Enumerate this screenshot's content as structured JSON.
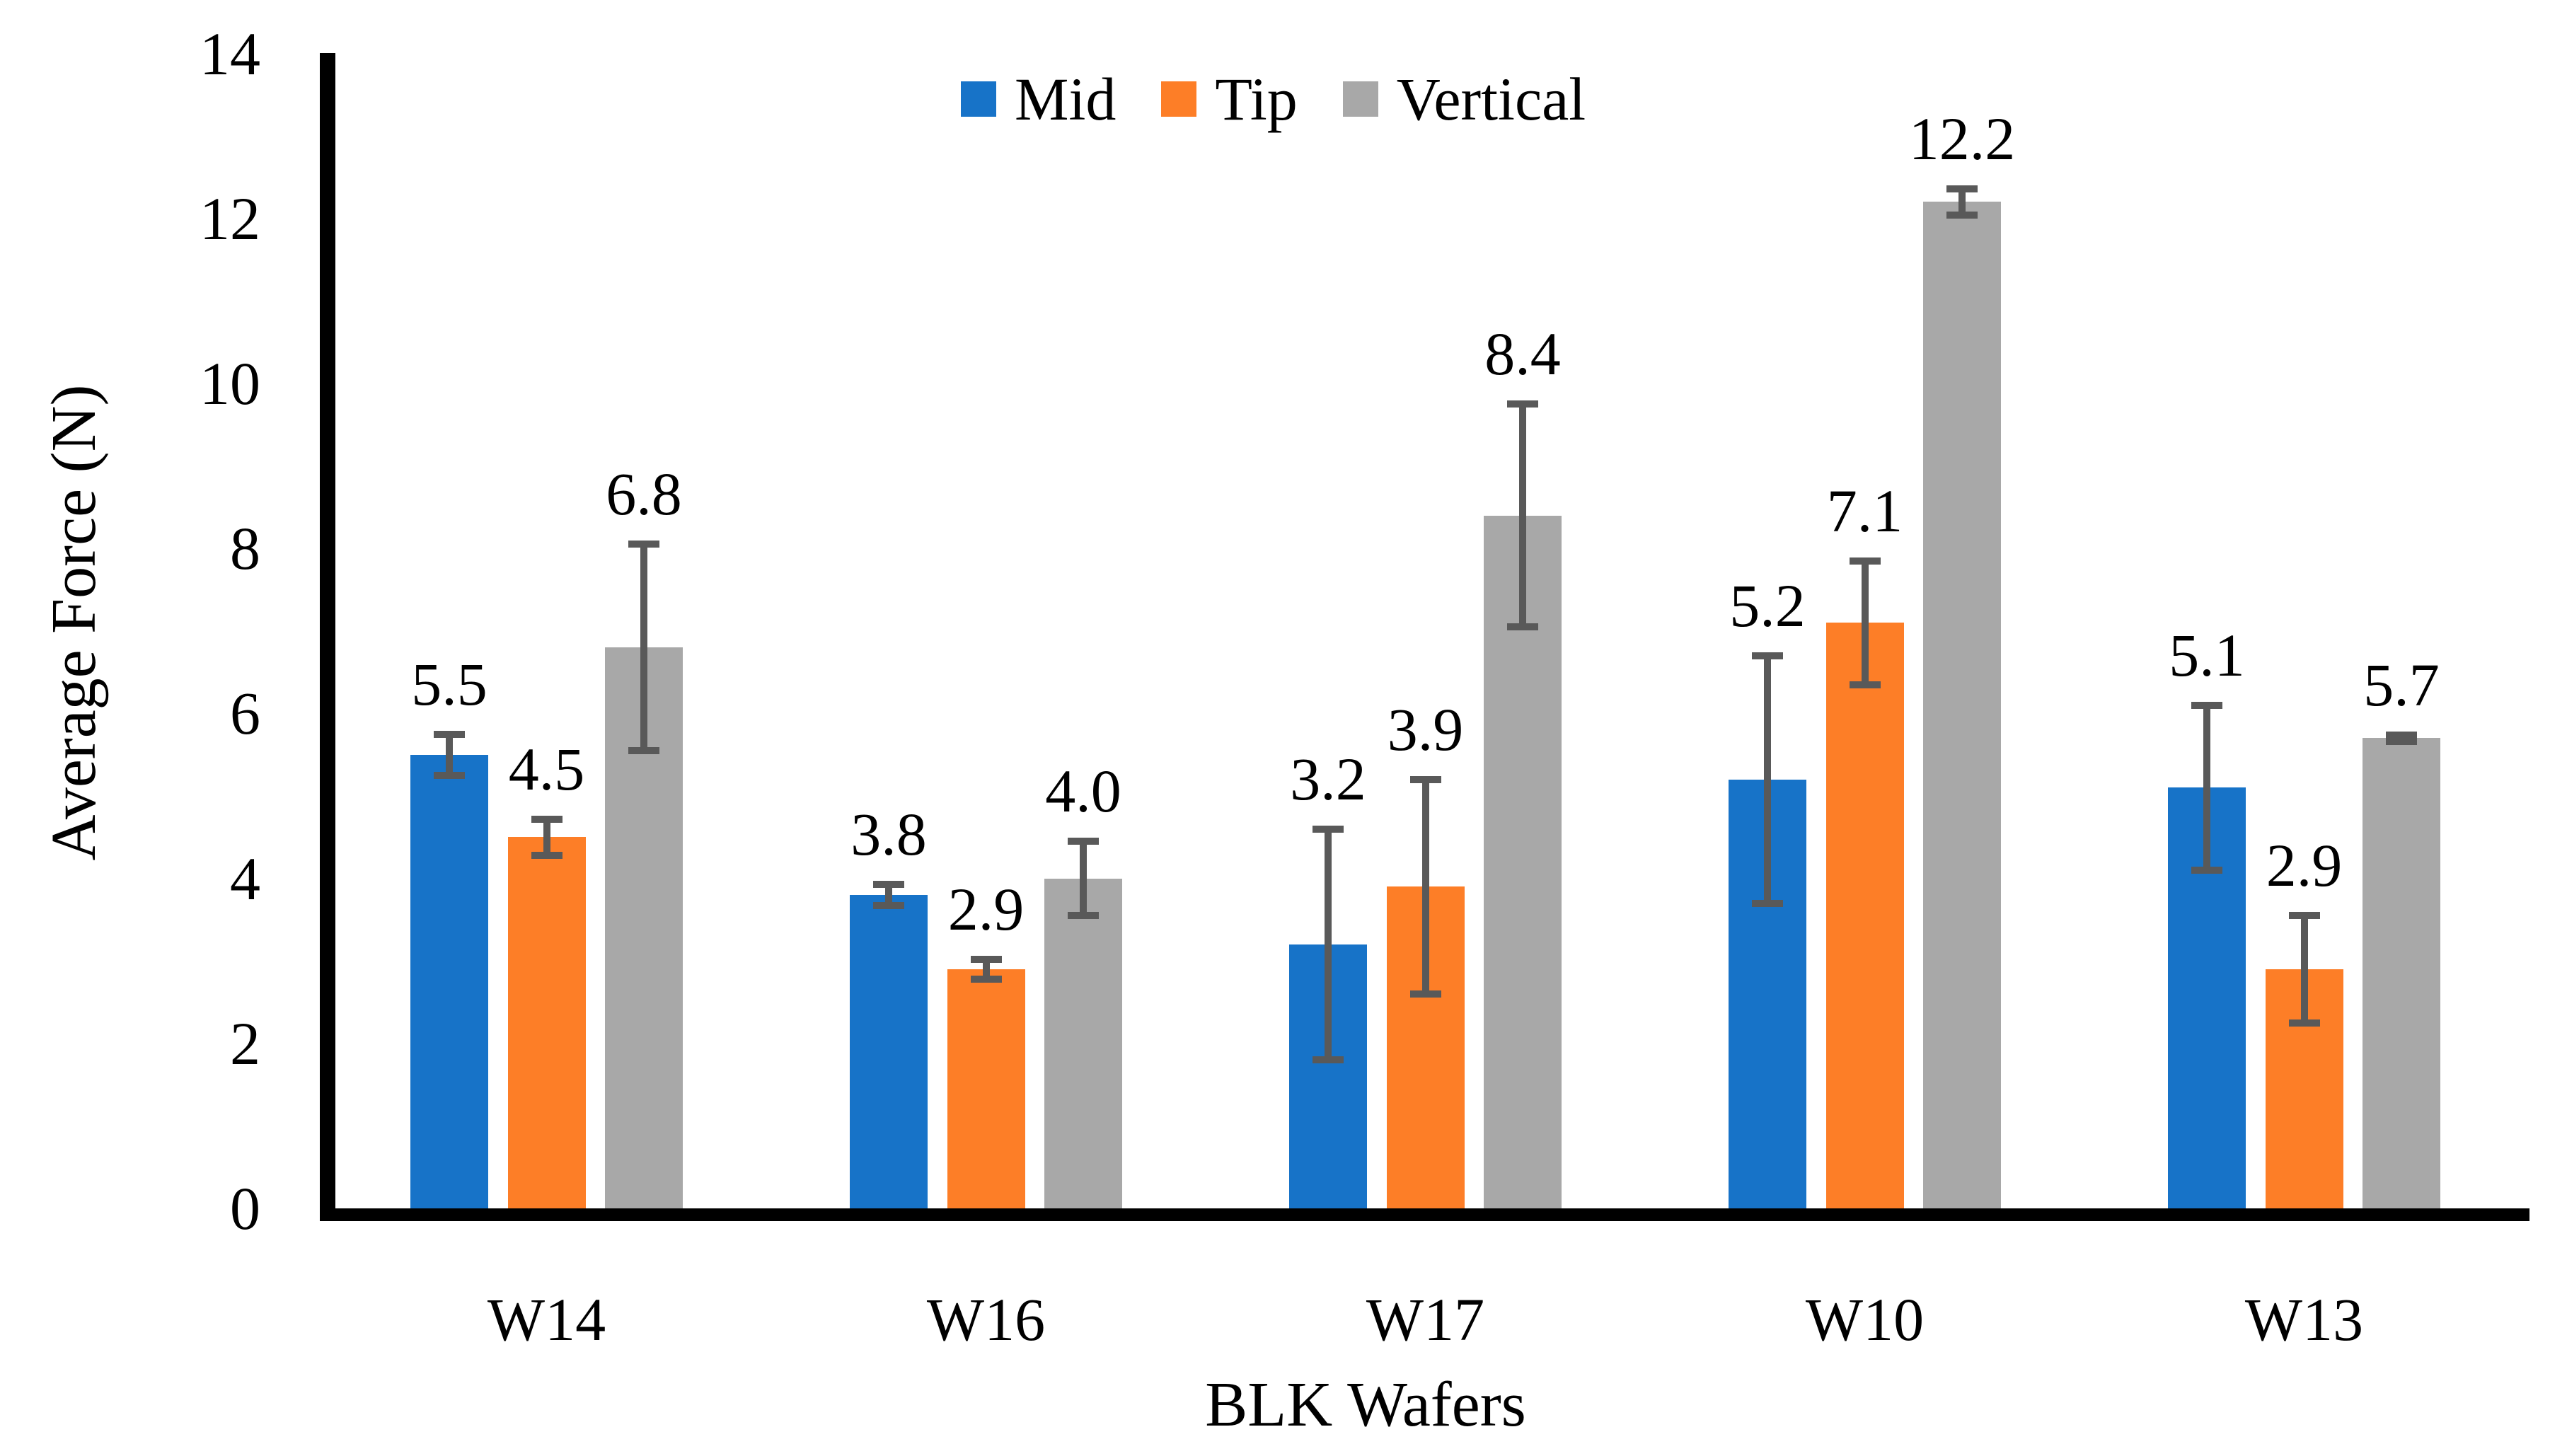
{
  "figure": {
    "background": "#FFFFFF",
    "axis_color": "#000000",
    "error_bar_color": "#595959",
    "text_color": "#000000"
  },
  "chart_data": {
    "type": "bar",
    "title": "",
    "ylabel": "Average Force (N)",
    "xlabel": "BLK Wafers",
    "categories": [
      "W14",
      "W16",
      "W17",
      "W10",
      "W13"
    ],
    "series": [
      {
        "name": "Mid",
        "color": "#1773C8",
        "values": [
          5.5,
          3.8,
          3.2,
          5.2,
          5.1
        ],
        "labels": [
          "5.5",
          "3.8",
          "3.2",
          "5.2",
          "5.1"
        ],
        "errors": [
          0.25,
          0.13,
          1.4,
          1.5,
          1.0
        ]
      },
      {
        "name": "Tip",
        "color": "#FD7E27",
        "values": [
          4.5,
          2.9,
          3.9,
          7.1,
          2.9
        ],
        "labels": [
          "4.5",
          "2.9",
          "3.9",
          "7.1",
          "2.9"
        ],
        "errors": [
          0.22,
          0.12,
          1.3,
          0.75,
          0.65
        ]
      },
      {
        "name": "Vertical",
        "color": "#A8A8A8",
        "values": [
          6.8,
          4.0,
          8.4,
          12.2,
          5.7
        ],
        "labels": [
          "6.8",
          "4.0",
          "8.4",
          "12.2",
          "5.7"
        ],
        "errors": [
          1.25,
          0.45,
          1.35,
          0.16,
          0.04
        ]
      }
    ],
    "ylim": [
      0,
      14
    ],
    "ytick_values": [
      0,
      2,
      4,
      6,
      8,
      10,
      12,
      14
    ],
    "ytick_labels": [
      "0",
      "2",
      "4",
      "6",
      "8",
      "10",
      "12",
      "14"
    ],
    "grid": false,
    "legend_position": "top-center",
    "error_bars": true,
    "data_labels": true
  }
}
